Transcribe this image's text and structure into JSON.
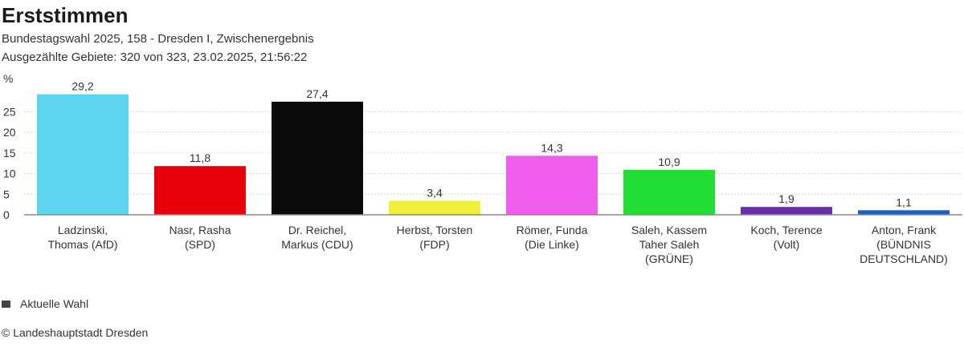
{
  "title": "Erststimmen",
  "subtitle_line1": "Bundestagswahl 2025, 158 - Dresden I, Zwischenergebnis",
  "subtitle_line2": "Ausgezählte Gebiete: 320 von 323, 23.02.2025, 21:56:22",
  "legend_label": "Aktuelle Wahl",
  "source": "© Landeshauptstadt Dresden",
  "chart_data": {
    "type": "bar",
    "title": "Erststimmen",
    "ylabel": "%",
    "xlabel": "",
    "ylim": [
      0,
      30
    ],
    "yticks": [
      0,
      5,
      10,
      15,
      20,
      25
    ],
    "grid": true,
    "categories": [
      [
        "Ladzinski,",
        "Thomas (AfD)"
      ],
      [
        "Nasr, Rasha",
        "(SPD)"
      ],
      [
        "Dr. Reichel,",
        "Markus (CDU)"
      ],
      [
        "Herbst, Torsten",
        "(FDP)"
      ],
      [
        "Römer, Funda",
        "(Die Linke)"
      ],
      [
        "Saleh, Kassem",
        "Taher Saleh",
        "(GRÜNE)"
      ],
      [
        "Koch, Terence",
        "(Volt)"
      ],
      [
        "Anton, Frank",
        "(BÜNDNIS",
        "DEUTSCHLAND)"
      ]
    ],
    "values": [
      29.2,
      11.8,
      27.4,
      3.4,
      14.3,
      10.9,
      1.9,
      1.1
    ],
    "value_labels": [
      "29,2",
      "11,8",
      "27,4",
      "3,4",
      "14,3",
      "10,9",
      "1,9",
      "1,1"
    ],
    "colors": [
      "#5dd3f0",
      "#e8000b",
      "#0a0a0a",
      "#f0f03a",
      "#ef5ded",
      "#22dd33",
      "#6a2fa5",
      "#1f5fbf"
    ],
    "legend": [
      {
        "name": "Aktuelle Wahl",
        "color": "#444444"
      }
    ]
  }
}
